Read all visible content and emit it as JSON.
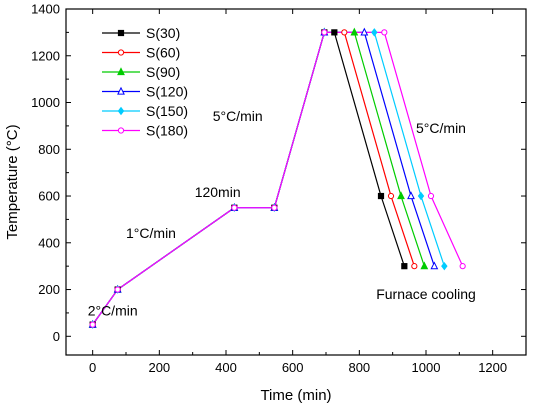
{
  "chart_data": {
    "type": "line",
    "xlabel": "Time (min)",
    "ylabel": "Temperature (°C)",
    "xlim": [
      -80,
      1300
    ],
    "ylim": [
      -80,
      1400
    ],
    "x_ticks": [
      0,
      200,
      400,
      600,
      800,
      1000,
      1200
    ],
    "y_ticks": [
      0,
      200,
      400,
      600,
      800,
      1000,
      1200,
      1400
    ],
    "grid": false,
    "legend_position": "top-left",
    "series": [
      {
        "name": "S(30)",
        "color": "#000000",
        "marker": "square-filled",
        "x": [
          0,
          75,
          425,
          545,
          695,
          725,
          865,
          935
        ],
        "y": [
          50,
          200,
          550,
          550,
          1300,
          1300,
          600,
          300
        ]
      },
      {
        "name": "S(60)",
        "color": "#ff0000",
        "marker": "circle-open",
        "x": [
          0,
          75,
          425,
          545,
          695,
          755,
          895,
          965
        ],
        "y": [
          50,
          200,
          550,
          550,
          1300,
          1300,
          600,
          300
        ]
      },
      {
        "name": "S(90)",
        "color": "#00cc00",
        "marker": "triangle-filled",
        "x": [
          0,
          75,
          425,
          545,
          695,
          785,
          925,
          995
        ],
        "y": [
          50,
          200,
          550,
          550,
          1300,
          1300,
          600,
          300
        ]
      },
      {
        "name": "S(120)",
        "color": "#0000ff",
        "marker": "triangle-open",
        "x": [
          0,
          75,
          425,
          545,
          695,
          815,
          955,
          1025
        ],
        "y": [
          50,
          200,
          550,
          550,
          1300,
          1300,
          600,
          300
        ]
      },
      {
        "name": "S(150)",
        "color": "#00ccff",
        "marker": "diamond-filled",
        "x": [
          0,
          75,
          425,
          545,
          695,
          845,
          985,
          1055
        ],
        "y": [
          50,
          200,
          550,
          550,
          1300,
          1300,
          600,
          300
        ]
      },
      {
        "name": "S(180)",
        "color": "#ff00ff",
        "marker": "circle-open",
        "x": [
          0,
          75,
          425,
          545,
          695,
          875,
          1015,
          1110
        ],
        "y": [
          50,
          200,
          550,
          550,
          1300,
          1300,
          600,
          300
        ]
      }
    ],
    "annotations": [
      {
        "text": "2°C/min",
        "x": 60,
        "y": 90
      },
      {
        "text": "1°C/min",
        "x": 175,
        "y": 420
      },
      {
        "text": "120min",
        "x": 375,
        "y": 595
      },
      {
        "text": "5°C/min",
        "x": 435,
        "y": 920
      },
      {
        "text": "5°C/min",
        "x": 1045,
        "y": 870
      },
      {
        "text": "Furnace cooling",
        "x": 1000,
        "y": 160
      }
    ]
  }
}
